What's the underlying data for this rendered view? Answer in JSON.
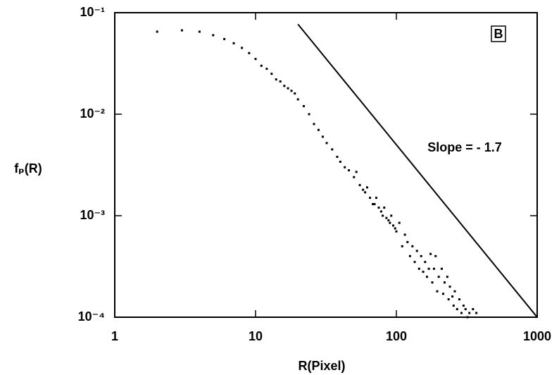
{
  "chart_data": {
    "type": "scatter",
    "xlabel": "R(Pixel)",
    "ylabel": "fₚ(R)",
    "annotation": "Slope = - 1.7",
    "panel_label": "B",
    "xlog": true,
    "ylog": true,
    "grid": false,
    "xlim": [
      1,
      1000
    ],
    "ylim": [
      0.0001,
      0.1
    ],
    "xticks": [
      1,
      10,
      100,
      1000
    ],
    "yticks": [
      {
        "value": 0.1,
        "label": "10⁻¹"
      },
      {
        "value": 0.01,
        "label": "10⁻²"
      },
      {
        "value": 0.001,
        "label": "10⁻³"
      },
      {
        "value": 0.0001,
        "label": "10⁻⁴"
      }
    ],
    "series": [
      {
        "color": "#000000",
        "x": [
          2,
          3,
          4,
          5,
          6,
          7,
          8,
          9,
          10,
          11,
          12,
          13,
          14,
          15,
          16,
          17,
          18,
          19,
          20,
          22,
          24,
          26,
          28,
          30,
          32,
          35,
          38,
          40,
          43,
          46,
          50,
          52,
          55,
          58,
          60,
          62,
          65,
          68,
          70,
          72,
          75,
          78,
          80,
          82,
          85,
          88,
          90,
          92,
          95,
          98,
          100,
          105,
          110,
          115,
          120,
          125,
          130,
          135,
          140,
          145,
          150,
          155,
          160,
          165,
          170,
          175,
          180,
          185,
          190,
          195,
          200,
          210,
          215,
          220,
          230,
          235,
          240,
          250,
          255,
          260,
          270,
          280,
          290,
          300,
          310,
          320,
          330,
          350,
          370
        ],
        "values": [
          0.065,
          0.067,
          0.065,
          0.06,
          0.055,
          0.05,
          0.045,
          0.04,
          0.035,
          0.03,
          0.028,
          0.025,
          0.022,
          0.021,
          0.019,
          0.018,
          0.017,
          0.016,
          0.014,
          0.012,
          0.01,
          0.008,
          0.007,
          0.006,
          0.0052,
          0.0045,
          0.0038,
          0.0034,
          0.003,
          0.0028,
          0.0024,
          0.0027,
          0.002,
          0.0018,
          0.0017,
          0.0019,
          0.0015,
          0.0013,
          0.0013,
          0.0015,
          0.0012,
          0.0011,
          0.001,
          0.0012,
          0.00095,
          0.0009,
          0.00085,
          0.001,
          0.0008,
          0.00075,
          0.0007,
          0.00085,
          0.0005,
          0.00065,
          0.00055,
          0.0004,
          0.0005,
          0.00035,
          0.00045,
          0.0003,
          0.0004,
          0.00028,
          0.00035,
          0.00025,
          0.0003,
          0.00042,
          0.00022,
          0.0003,
          0.0004,
          0.00018,
          0.00025,
          0.0003,
          0.00017,
          0.00022,
          0.00025,
          0.00015,
          0.0002,
          0.00016,
          0.00013,
          0.00018,
          0.00012,
          0.00015,
          0.00011,
          0.00013,
          0.00012,
          0.0001,
          0.00011,
          0.00012,
          0.00011
        ]
      }
    ],
    "fit_line": {
      "color": "#000000",
      "x": [
        20,
        1000
      ],
      "values": [
        0.077,
        0.0001
      ]
    }
  }
}
